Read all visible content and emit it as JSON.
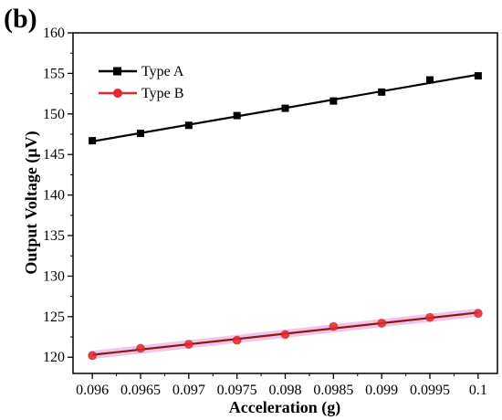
{
  "panel_label": "(b)",
  "chart_data": {
    "type": "line",
    "xlabel": "Acceleration (g)",
    "ylabel": "Output Voltage (μV)",
    "xlim": [
      0.0958,
      0.1002
    ],
    "ylim": [
      118,
      160
    ],
    "xticks": [
      0.096,
      0.0965,
      0.097,
      0.0975,
      0.098,
      0.0985,
      0.099,
      0.0995,
      0.1
    ],
    "xtick_labels": [
      "0.096",
      "0.0965",
      "0.097",
      "0.0975",
      "0.098",
      "0.0985",
      "0.099",
      "0.0995",
      "0.1"
    ],
    "yticks": [
      120,
      125,
      130,
      135,
      140,
      145,
      150,
      155,
      160
    ],
    "ytick_labels": [
      "120",
      "125",
      "130",
      "135",
      "140",
      "145",
      "150",
      "155",
      "160"
    ],
    "grid": false,
    "legend_position": "top-left",
    "x": [
      0.096,
      0.0965,
      0.097,
      0.0975,
      0.098,
      0.0985,
      0.099,
      0.0995,
      0.1
    ],
    "series": [
      {
        "name": "Type A",
        "marker": "square",
        "color": "#000000",
        "values": [
          146.7,
          147.6,
          148.6,
          149.8,
          150.7,
          151.6,
          152.7,
          154.2,
          154.7
        ]
      },
      {
        "name": "Type B",
        "marker": "circle",
        "color": "#e8262d",
        "fit_color": "#8b1a10",
        "values": [
          120.2,
          121.1,
          121.6,
          122.1,
          122.8,
          123.8,
          124.2,
          124.9,
          125.4
        ]
      }
    ]
  }
}
